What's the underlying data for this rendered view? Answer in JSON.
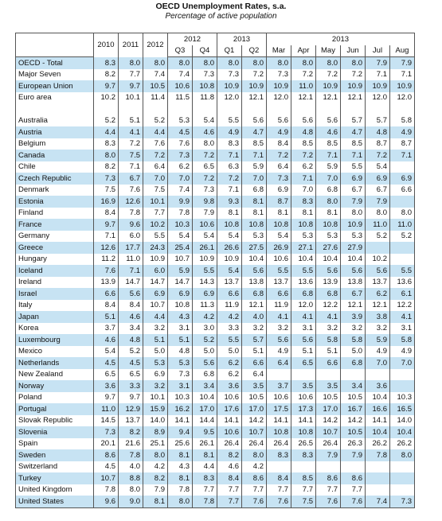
{
  "title": "OECD Unemployment Rates, s.a.",
  "subtitle": "Percentage of active population",
  "header": {
    "years": [
      "2010",
      "2011",
      "2012"
    ],
    "group_2012": "2012",
    "group_2013q": "2013",
    "group_2013m": "2013",
    "quarters": [
      "Q3",
      "Q4",
      "Q1",
      "Q2"
    ],
    "months": [
      "Mar",
      "Apr",
      "May",
      "Jun",
      "Jul",
      "Aug"
    ]
  },
  "rows_top": [
    {
      "label": "OECD - Total",
      "v": [
        "8.3",
        "8.0",
        "8.0",
        "8.0",
        "8.0",
        "8.0",
        "8.0",
        "8.0",
        "8.0",
        "8.0",
        "8.0",
        "7.9",
        "7.9"
      ]
    },
    {
      "label": "Major Seven",
      "v": [
        "8.2",
        "7.7",
        "7.4",
        "7.4",
        "7.3",
        "7.3",
        "7.2",
        "7.3",
        "7.2",
        "7.2",
        "7.2",
        "7.1",
        "7.1"
      ]
    },
    {
      "label": "European Union",
      "v": [
        "9.7",
        "9.7",
        "10.5",
        "10.6",
        "10.8",
        "10.9",
        "10.9",
        "10.9",
        "11.0",
        "10.9",
        "10.9",
        "10.9",
        "10.9"
      ]
    },
    {
      "label": "Euro area",
      "v": [
        "10.2",
        "10.1",
        "11.4",
        "11.5",
        "11.8",
        "12.0",
        "12.1",
        "12.0",
        "12.1",
        "12.1",
        "12.1",
        "12.0",
        "12.0"
      ]
    }
  ],
  "rows": [
    {
      "label": "Australia",
      "v": [
        "5.2",
        "5.1",
        "5.2",
        "5.3",
        "5.4",
        "5.5",
        "5.6",
        "5.6",
        "5.6",
        "5.6",
        "5.7",
        "5.7",
        "5.8"
      ]
    },
    {
      "label": "Austria",
      "v": [
        "4.4",
        "4.1",
        "4.4",
        "4.5",
        "4.6",
        "4.9",
        "4.7",
        "4.9",
        "4.8",
        "4.6",
        "4.7",
        "4.8",
        "4.9"
      ]
    },
    {
      "label": "Belgium",
      "v": [
        "8.3",
        "7.2",
        "7.6",
        "7.6",
        "8.0",
        "8.3",
        "8.5",
        "8.4",
        "8.5",
        "8.5",
        "8.5",
        "8.7",
        "8.7"
      ]
    },
    {
      "label": "Canada",
      "v": [
        "8.0",
        "7.5",
        "7.2",
        "7.3",
        "7.2",
        "7.1",
        "7.1",
        "7.2",
        "7.2",
        "7.1",
        "7.1",
        "7.2",
        "7.1"
      ]
    },
    {
      "label": "Chile",
      "v": [
        "8.2",
        "7.1",
        "6.4",
        "6.2",
        "6.5",
        "6.3",
        "5.9",
        "6.4",
        "6.2",
        "5.9",
        "5.5",
        "5.4",
        ""
      ]
    },
    {
      "label": "Czech Republic",
      "v": [
        "7.3",
        "6.7",
        "7.0",
        "7.0",
        "7.2",
        "7.2",
        "7.0",
        "7.3",
        "7.1",
        "7.0",
        "6.9",
        "6.9",
        "6.9"
      ]
    },
    {
      "label": "Denmark",
      "v": [
        "7.5",
        "7.6",
        "7.5",
        "7.4",
        "7.3",
        "7.1",
        "6.8",
        "6.9",
        "7.0",
        "6.8",
        "6.7",
        "6.7",
        "6.6"
      ]
    },
    {
      "label": "Estonia",
      "v": [
        "16.9",
        "12.6",
        "10.1",
        "9.9",
        "9.8",
        "9.3",
        "8.1",
        "8.7",
        "8.3",
        "8.0",
        "7.9",
        "7.9",
        ""
      ]
    },
    {
      "label": "Finland",
      "v": [
        "8.4",
        "7.8",
        "7.7",
        "7.8",
        "7.9",
        "8.1",
        "8.1",
        "8.1",
        "8.1",
        "8.1",
        "8.0",
        "8.0",
        "8.0"
      ]
    },
    {
      "label": "France",
      "v": [
        "9.7",
        "9.6",
        "10.2",
        "10.3",
        "10.6",
        "10.8",
        "10.8",
        "10.8",
        "10.8",
        "10.8",
        "10.9",
        "11.0",
        "11.0"
      ]
    },
    {
      "label": "Germany",
      "v": [
        "7.1",
        "6.0",
        "5.5",
        "5.4",
        "5.4",
        "5.4",
        "5.3",
        "5.4",
        "5.3",
        "5.3",
        "5.3",
        "5.2",
        "5.2"
      ]
    },
    {
      "label": "Greece",
      "v": [
        "12.6",
        "17.7",
        "24.3",
        "25.4",
        "26.1",
        "26.6",
        "27.5",
        "26.9",
        "27.1",
        "27.6",
        "27.9",
        "",
        ""
      ]
    },
    {
      "label": "Hungary",
      "v": [
        "11.2",
        "11.0",
        "10.9",
        "10.7",
        "10.9",
        "10.9",
        "10.4",
        "10.6",
        "10.4",
        "10.4",
        "10.4",
        "10.2",
        ""
      ]
    },
    {
      "label": "Iceland",
      "v": [
        "7.6",
        "7.1",
        "6.0",
        "5.9",
        "5.5",
        "5.4",
        "5.6",
        "5.5",
        "5.5",
        "5.6",
        "5.6",
        "5.6",
        "5.5"
      ]
    },
    {
      "label": "Ireland",
      "v": [
        "13.9",
        "14.7",
        "14.7",
        "14.7",
        "14.3",
        "13.7",
        "13.8",
        "13.7",
        "13.6",
        "13.9",
        "13.8",
        "13.7",
        "13.6"
      ]
    },
    {
      "label": "Israel",
      "v": [
        "6.6",
        "5.6",
        "6.9",
        "6.9",
        "6.9",
        "6.6",
        "6.8",
        "6.6",
        "6.8",
        "6.8",
        "6.7",
        "6.2",
        "6.1"
      ]
    },
    {
      "label": "Italy",
      "v": [
        "8.4",
        "8.4",
        "10.7",
        "10.8",
        "11.3",
        "11.9",
        "12.1",
        "11.9",
        "12.0",
        "12.2",
        "12.1",
        "12.1",
        "12.2"
      ]
    },
    {
      "label": "Japan",
      "v": [
        "5.1",
        "4.6",
        "4.4",
        "4.3",
        "4.2",
        "4.2",
        "4.0",
        "4.1",
        "4.1",
        "4.1",
        "3.9",
        "3.8",
        "4.1"
      ]
    },
    {
      "label": "Korea",
      "v": [
        "3.7",
        "3.4",
        "3.2",
        "3.1",
        "3.0",
        "3.3",
        "3.2",
        "3.2",
        "3.1",
        "3.2",
        "3.2",
        "3.2",
        "3.1"
      ]
    },
    {
      "label": "Luxembourg",
      "v": [
        "4.6",
        "4.8",
        "5.1",
        "5.1",
        "5.2",
        "5.5",
        "5.7",
        "5.6",
        "5.6",
        "5.8",
        "5.8",
        "5.9",
        "5.8"
      ]
    },
    {
      "label": "Mexico",
      "v": [
        "5.4",
        "5.2",
        "5.0",
        "4.8",
        "5.0",
        "5.0",
        "5.1",
        "4.9",
        "5.1",
        "5.1",
        "5.0",
        "4.9",
        "4.9"
      ]
    },
    {
      "label": "Netherlands",
      "v": [
        "4.5",
        "4.5",
        "5.3",
        "5.3",
        "5.6",
        "6.2",
        "6.6",
        "6.4",
        "6.5",
        "6.6",
        "6.8",
        "7.0",
        "7.0"
      ]
    },
    {
      "label": "New Zealand",
      "v": [
        "6.5",
        "6.5",
        "6.9",
        "7.3",
        "6.8",
        "6.2",
        "6.4",
        "",
        "",
        "",
        "",
        "",
        ""
      ]
    },
    {
      "label": "Norway",
      "v": [
        "3.6",
        "3.3",
        "3.2",
        "3.1",
        "3.4",
        "3.6",
        "3.5",
        "3.7",
        "3.5",
        "3.5",
        "3.4",
        "3.6",
        ""
      ]
    },
    {
      "label": "Poland",
      "v": [
        "9.7",
        "9.7",
        "10.1",
        "10.3",
        "10.4",
        "10.6",
        "10.5",
        "10.6",
        "10.6",
        "10.5",
        "10.5",
        "10.4",
        "10.3"
      ]
    },
    {
      "label": "Portugal",
      "v": [
        "11.0",
        "12.9",
        "15.9",
        "16.2",
        "17.0",
        "17.6",
        "17.0",
        "17.5",
        "17.3",
        "17.0",
        "16.7",
        "16.6",
        "16.5"
      ]
    },
    {
      "label": "Slovak Republic",
      "v": [
        "14.5",
        "13.7",
        "14.0",
        "14.1",
        "14.4",
        "14.1",
        "14.2",
        "14.1",
        "14.1",
        "14.2",
        "14.2",
        "14.1",
        "14.0"
      ]
    },
    {
      "label": "Slovenia",
      "v": [
        "7.3",
        "8.2",
        "8.9",
        "9.4",
        "9.5",
        "10.6",
        "10.7",
        "10.8",
        "10.8",
        "10.7",
        "10.5",
        "10.4",
        "10.4"
      ]
    },
    {
      "label": "Spain",
      "v": [
        "20.1",
        "21.6",
        "25.1",
        "25.6",
        "26.1",
        "26.4",
        "26.4",
        "26.4",
        "26.5",
        "26.4",
        "26.3",
        "26.2",
        "26.2"
      ]
    },
    {
      "label": "Sweden",
      "v": [
        "8.6",
        "7.8",
        "8.0",
        "8.1",
        "8.1",
        "8.2",
        "8.0",
        "8.3",
        "8.3",
        "7.9",
        "7.9",
        "7.8",
        "8.0"
      ]
    },
    {
      "label": "Switzerland",
      "v": [
        "4.5",
        "4.0",
        "4.2",
        "4.3",
        "4.4",
        "4.6",
        "4.2",
        "",
        "",
        "",
        "",
        "",
        ""
      ]
    },
    {
      "label": "Turkey",
      "v": [
        "10.7",
        "8.8",
        "8.2",
        "8.1",
        "8.3",
        "8.4",
        "8.6",
        "8.4",
        "8.5",
        "8.6",
        "8.6",
        "",
        ""
      ]
    },
    {
      "label": "United Kingdom",
      "v": [
        "7.8",
        "8.0",
        "7.9",
        "7.8",
        "7.7",
        "7.7",
        "7.7",
        "7.7",
        "7.7",
        "7.7",
        "7.7",
        "",
        ""
      ]
    },
    {
      "label": "United States",
      "v": [
        "9.6",
        "9.0",
        "8.1",
        "8.0",
        "7.8",
        "7.7",
        "7.6",
        "7.6",
        "7.5",
        "7.6",
        "7.6",
        "7.4",
        "7.3"
      ]
    }
  ],
  "colors": {
    "band": "#c7e3f3",
    "border": "#555555"
  }
}
